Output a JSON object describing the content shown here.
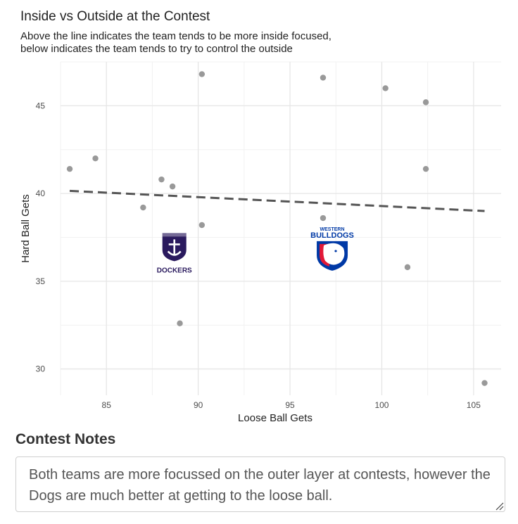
{
  "chart_data": {
    "type": "scatter",
    "title": "Inside vs Outside at the Contest",
    "subtitle": [
      "Above the line indicates the team tends to be more inside focused,",
      "below indicates the team tends to try to control the outside"
    ],
    "xlabel": "Loose Ball Gets",
    "ylabel": "Hard Ball Gets",
    "xlim": [
      82.5,
      106.5
    ],
    "ylim": [
      28.5,
      47.5
    ],
    "xticks": [
      85,
      90,
      95,
      100,
      105
    ],
    "yticks": [
      30,
      35,
      40,
      45
    ],
    "grid": true,
    "point_color": "#999999",
    "points": [
      {
        "x": 83.0,
        "y": 41.4
      },
      {
        "x": 84.4,
        "y": 42.0
      },
      {
        "x": 87.0,
        "y": 39.2
      },
      {
        "x": 88.0,
        "y": 40.8
      },
      {
        "x": 88.6,
        "y": 40.4
      },
      {
        "x": 89.0,
        "y": 32.6
      },
      {
        "x": 90.2,
        "y": 46.8
      },
      {
        "x": 90.2,
        "y": 38.2
      },
      {
        "x": 96.8,
        "y": 46.6
      },
      {
        "x": 96.8,
        "y": 38.6
      },
      {
        "x": 100.2,
        "y": 46.0
      },
      {
        "x": 101.4,
        "y": 35.8
      },
      {
        "x": 102.4,
        "y": 45.2
      },
      {
        "x": 102.4,
        "y": 41.4
      },
      {
        "x": 105.6,
        "y": 29.2
      }
    ],
    "trend_line": {
      "x": [
        83.0,
        105.6
      ],
      "y": [
        40.15,
        39.0
      ],
      "style": "dashed",
      "color": "#555555"
    },
    "team_logos": [
      {
        "name": "Fremantle Dockers",
        "x": 88.7,
        "y": 36.7,
        "label": "DOCKERS",
        "color": "#2a1a5e"
      },
      {
        "name": "Western Bulldogs",
        "x": 97.3,
        "y": 36.8,
        "label": "BULLDOGS",
        "sublabel": "WESTERN",
        "color": "#0039a6",
        "accent": "#e21937"
      }
    ]
  },
  "notes": {
    "heading": "Contest Notes",
    "text": "Both teams are more focussed on the outer layer at contests, however the Dogs are much better at getting to the loose ball."
  }
}
